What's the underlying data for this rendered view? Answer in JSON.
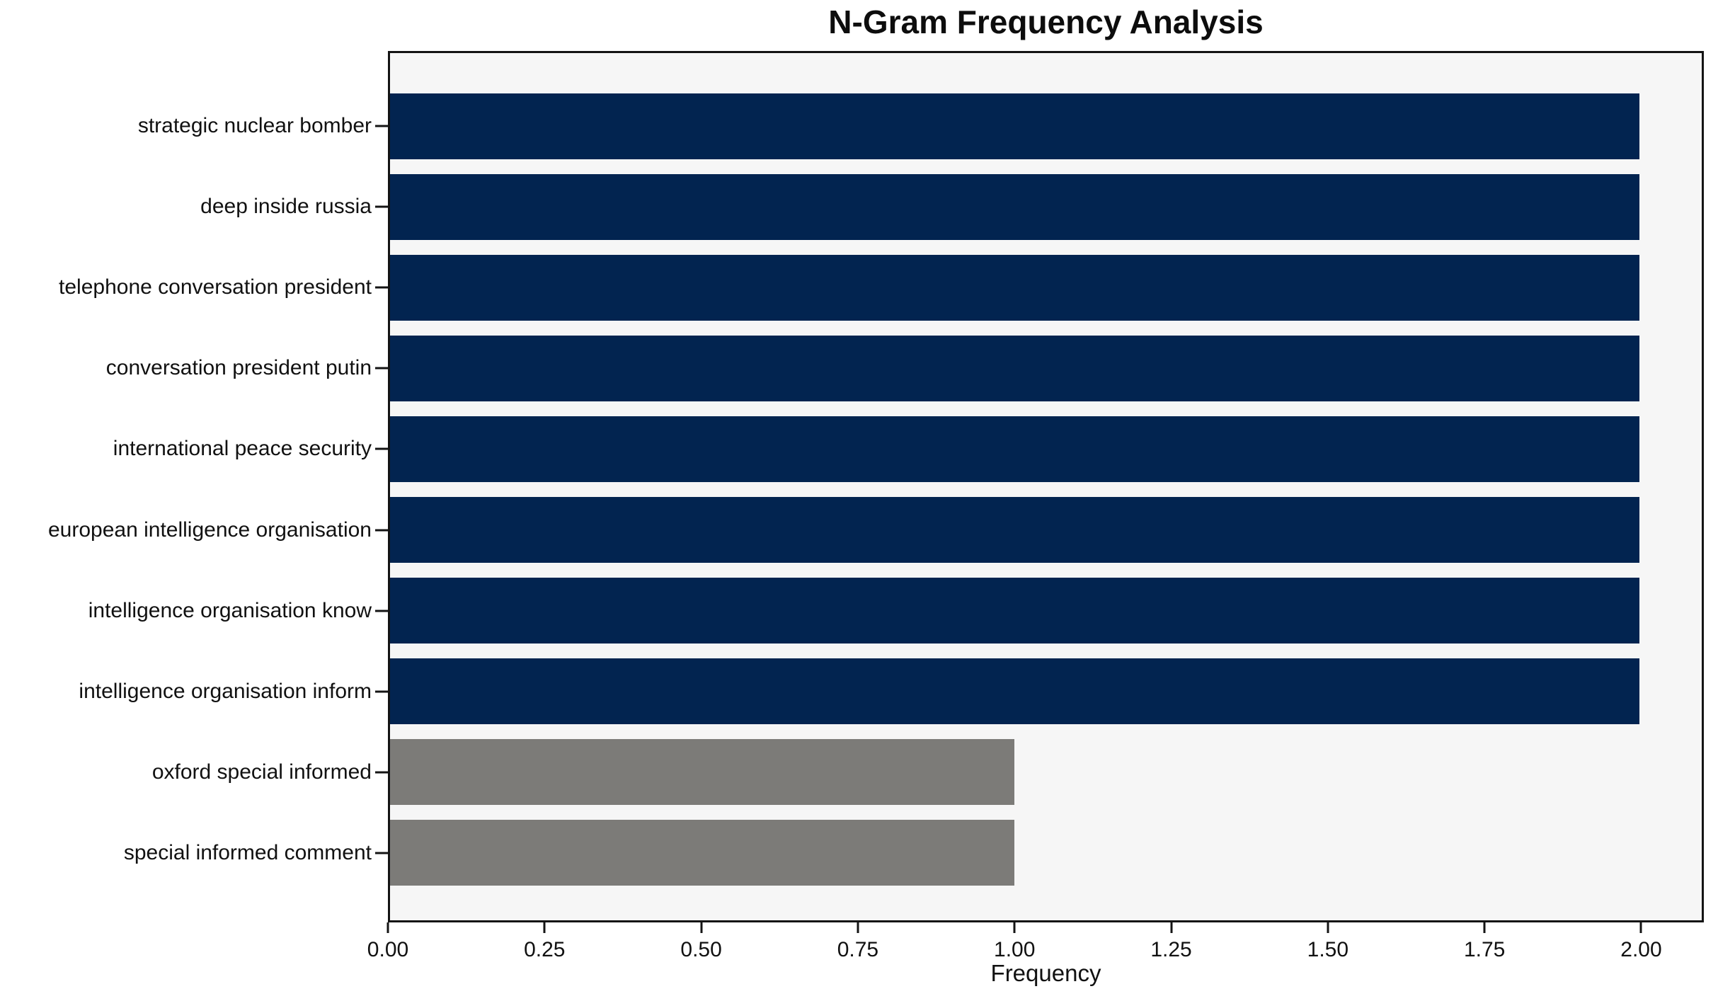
{
  "figure": {
    "title": "N-Gram Frequency Analysis",
    "xlabel": "Frequency"
  },
  "chart_data": {
    "type": "bar",
    "orientation": "horizontal",
    "title": "N-Gram Frequency Analysis",
    "xlabel": "Frequency",
    "ylabel": "",
    "categories": [
      "strategic nuclear bomber",
      "deep inside russia",
      "telephone conversation president",
      "conversation president putin",
      "international peace security",
      "european intelligence organisation",
      "intelligence organisation know",
      "intelligence organisation inform",
      "oxford special informed",
      "special informed comment"
    ],
    "values": [
      2,
      2,
      2,
      2,
      2,
      2,
      2,
      2,
      1,
      1
    ],
    "bar_colors": [
      "#022450",
      "#022450",
      "#022450",
      "#022450",
      "#022450",
      "#022450",
      "#022450",
      "#022450",
      "#7c7b78",
      "#7c7b78"
    ],
    "xlim": [
      0,
      2.1
    ],
    "xticks": [
      0,
      0.25,
      0.5,
      0.75,
      1.0,
      1.25,
      1.5,
      1.75,
      2.0
    ],
    "xtick_labels": [
      "0.00",
      "0.25",
      "0.50",
      "0.75",
      "1.00",
      "1.25",
      "1.50",
      "1.75",
      "2.00"
    ],
    "grid": false,
    "legend": false,
    "plot_background": "#f6f6f6",
    "page_background": "#ffffff",
    "spine_color": "#141414",
    "accent_navy": "#022450",
    "accent_gray": "#7c7b78"
  }
}
